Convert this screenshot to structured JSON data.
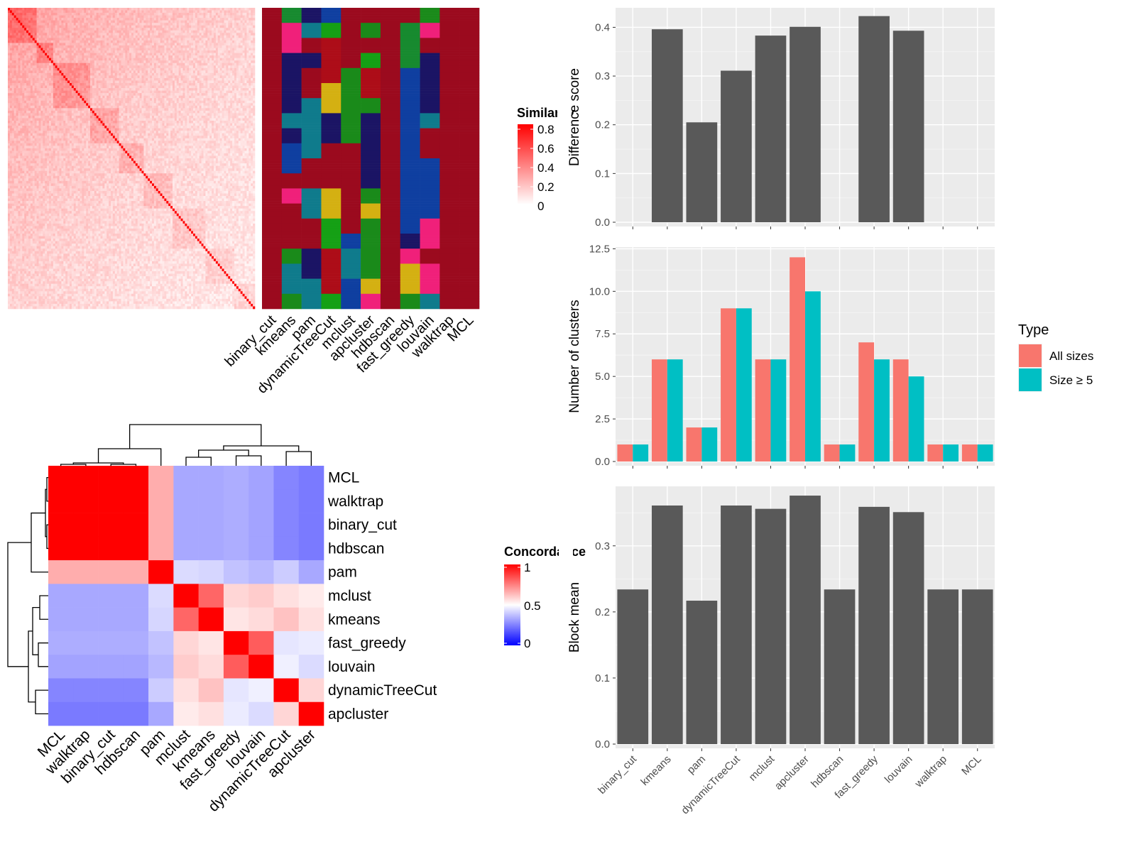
{
  "methods": [
    "binary_cut",
    "kmeans",
    "pam",
    "dynamicTreeCut",
    "mclust",
    "apcluster",
    "hdbscan",
    "fast_greedy",
    "louvain",
    "walktrap",
    "MCL"
  ],
  "colors": {
    "similarity_high": "#ff0000",
    "similarity_low": "#ffffff",
    "concordance_high": "#ff0000",
    "concordance_mid": "#ffffff",
    "concordance_low": "#0000ff",
    "bar_fill": "#595959",
    "panel_bg": "#ebebeb",
    "all_sizes": "#f8766d",
    "size_ge5": "#00bfc4",
    "cluster_palette": [
      "#9b0a1e",
      "#0f7b8c",
      "#1b1464",
      "#0f3fa0",
      "#1a8a1a",
      "#178a2f",
      "#f0207a",
      "#d4b012",
      "#15a015",
      "#ad0d18"
    ]
  },
  "similarity_legend": {
    "title": "Similarity",
    "ticks": [
      "0.8",
      "0.6",
      "0.4",
      "0.2",
      "0"
    ]
  },
  "concordance_legend": {
    "title": "Concordance",
    "ticks": [
      "1",
      "0.5",
      "0"
    ]
  },
  "concordance_heatmap": {
    "order": [
      "MCL",
      "walktrap",
      "binary_cut",
      "hdbscan",
      "pam",
      "mclust",
      "kmeans",
      "fast_greedy",
      "louvain",
      "dynamicTreeCut",
      "apcluster"
    ]
  },
  "chart_data": [
    {
      "type": "heatmap",
      "name": "similarity",
      "size": 120,
      "value_range": [
        0,
        0.85
      ]
    },
    {
      "type": "heatmap",
      "name": "concordance",
      "rows": [
        "MCL",
        "walktrap",
        "binary_cut",
        "hdbscan",
        "pam",
        "mclust",
        "kmeans",
        "fast_greedy",
        "louvain",
        "dynamicTreeCut",
        "apcluster"
      ],
      "cols": [
        "MCL",
        "walktrap",
        "binary_cut",
        "hdbscan",
        "pam",
        "mclust",
        "kmeans",
        "fast_greedy",
        "louvain",
        "dynamicTreeCut",
        "apcluster"
      ],
      "values": [
        [
          1,
          1,
          1,
          1,
          0.66,
          0.33,
          0.33,
          0.34,
          0.32,
          0.26,
          0.24
        ],
        [
          1,
          1,
          1,
          1,
          0.66,
          0.33,
          0.33,
          0.34,
          0.32,
          0.26,
          0.24
        ],
        [
          1,
          1,
          1,
          1,
          0.66,
          0.33,
          0.33,
          0.34,
          0.32,
          0.26,
          0.24
        ],
        [
          1,
          1,
          1,
          1,
          0.66,
          0.33,
          0.33,
          0.34,
          0.32,
          0.26,
          0.24
        ],
        [
          0.66,
          0.66,
          0.66,
          0.66,
          1,
          0.43,
          0.42,
          0.38,
          0.36,
          0.4,
          0.33
        ],
        [
          0.33,
          0.33,
          0.33,
          0.33,
          0.43,
          1,
          0.8,
          0.58,
          0.6,
          0.56,
          0.54
        ],
        [
          0.33,
          0.33,
          0.33,
          0.33,
          0.42,
          0.8,
          1,
          0.55,
          0.57,
          0.62,
          0.56
        ],
        [
          0.34,
          0.34,
          0.34,
          0.34,
          0.38,
          0.58,
          0.55,
          1,
          0.82,
          0.45,
          0.46
        ],
        [
          0.32,
          0.32,
          0.32,
          0.32,
          0.36,
          0.6,
          0.57,
          0.82,
          1,
          0.47,
          0.43
        ],
        [
          0.26,
          0.26,
          0.26,
          0.26,
          0.4,
          0.56,
          0.62,
          0.45,
          0.47,
          1,
          0.58
        ],
        [
          0.24,
          0.24,
          0.24,
          0.24,
          0.33,
          0.54,
          0.56,
          0.46,
          0.43,
          0.58,
          1
        ]
      ],
      "legend_title": "Concordance",
      "value_range": [
        0,
        1
      ]
    },
    {
      "type": "bar",
      "name": "difference_score",
      "categories": [
        "binary_cut",
        "kmeans",
        "pam",
        "dynamicTreeCut",
        "mclust",
        "apcluster",
        "hdbscan",
        "fast_greedy",
        "louvain",
        "walktrap",
        "MCL"
      ],
      "values": [
        null,
        0.396,
        0.205,
        0.311,
        0.383,
        0.401,
        null,
        0.423,
        0.393,
        null,
        null
      ],
      "ylabel": "Difference score",
      "ylim": [
        0,
        0.44
      ],
      "yticks": [
        "0.0",
        "0.1",
        "0.2",
        "0.3",
        "0.4"
      ]
    },
    {
      "type": "bar",
      "name": "number_of_clusters",
      "categories": [
        "binary_cut",
        "kmeans",
        "pam",
        "dynamicTreeCut",
        "mclust",
        "apcluster",
        "hdbscan",
        "fast_greedy",
        "louvain",
        "walktrap",
        "MCL"
      ],
      "series": [
        {
          "name": "All sizes",
          "values": [
            1,
            6,
            2,
            9,
            6,
            12,
            1,
            7,
            6,
            1,
            1
          ]
        },
        {
          "name": "Size ≥ 5",
          "values": [
            1,
            6,
            2,
            9,
            6,
            10,
            1,
            6,
            5,
            1,
            1
          ]
        }
      ],
      "ylabel": "Number of clusters",
      "ylim": [
        0,
        12.6
      ],
      "yticks": [
        "0.0",
        "2.5",
        "5.0",
        "7.5",
        "10.0",
        "12.5"
      ],
      "legend_title": "Type",
      "legend_position": "right"
    },
    {
      "type": "bar",
      "name": "block_mean",
      "categories": [
        "binary_cut",
        "kmeans",
        "pam",
        "dynamicTreeCut",
        "mclust",
        "apcluster",
        "hdbscan",
        "fast_greedy",
        "louvain",
        "walktrap",
        "MCL"
      ],
      "values": [
        0.234,
        0.361,
        0.217,
        0.361,
        0.356,
        0.376,
        0.234,
        0.359,
        0.351,
        0.234,
        0.234
      ],
      "ylabel": "Block mean",
      "ylim": [
        0,
        0.39
      ],
      "yticks": [
        "0.0",
        "0.1",
        "0.2",
        "0.3"
      ]
    }
  ]
}
